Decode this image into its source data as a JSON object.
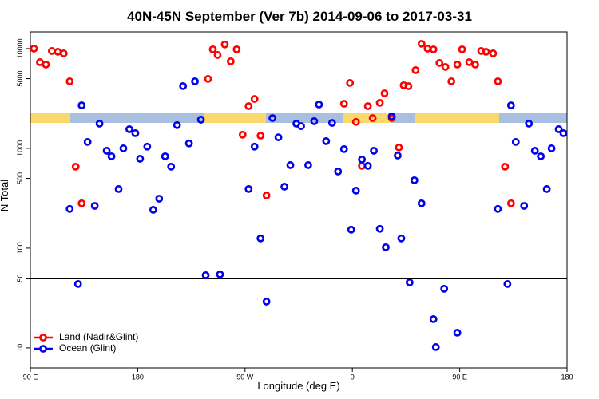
{
  "chart_data": {
    "type": "scatter",
    "title": "40N-45N September (Ver 7b)   2014-09-06 to 2017-03-31",
    "x_label": "Longitude (deg E)",
    "y_label": "N Total",
    "xlim": [
      90,
      540
    ],
    "ylim": [
      6.3,
      14700
    ],
    "log_y": true,
    "hline": 50,
    "xticks": [
      {
        "value": 90,
        "label": "90 E"
      },
      180,
      {
        "value": 270,
        "label": "90 W"
      },
      {
        "value": 360,
        "label": "0"
      },
      {
        "value": 450,
        "label": "90 E"
      },
      {
        "value": 540,
        "label": "180"
      }
    ],
    "yticks": [
      10,
      50,
      100,
      500,
      1000,
      5000,
      10000
    ],
    "legend_position": "bottom-left",
    "series": [
      {
        "name": "Land (Nadir&Glint)",
        "color": "#ff0000",
        "x": [
          93,
          98,
          103,
          108,
          113,
          118,
          123,
          128,
          133,
          239,
          243,
          247,
          253,
          258,
          263,
          268,
          273,
          278,
          283,
          288,
          353,
          358,
          363,
          368,
          373,
          377,
          383,
          387,
          393,
          399,
          403,
          407,
          413,
          418,
          423,
          428,
          433,
          438,
          443,
          448,
          452,
          458,
          463,
          468,
          472,
          478,
          482,
          488,
          493
        ],
        "values": [
          10000,
          7310,
          6920,
          9460,
          9290,
          8950,
          4700,
          655,
          281,
          4970,
          9820,
          8630,
          11000,
          7450,
          9820,
          1370,
          2650,
          3130,
          1340,
          337,
          2800,
          4530,
          1840,
          667,
          2650,
          2010,
          2860,
          3560,
          2010,
          1020,
          4290,
          4200,
          6080,
          11170,
          10000,
          9820,
          7180,
          6550,
          4700,
          6920,
          9820,
          7310,
          6920,
          9460,
          9290,
          8950,
          4700,
          655,
          281
        ]
      },
      {
        "name": "Ocean (Glint)",
        "color": "#0000ee",
        "x": [
          123,
          130,
          133,
          138,
          144,
          148,
          154,
          158,
          164,
          168,
          173,
          178,
          182,
          188,
          193,
          198,
          203,
          208,
          213,
          218,
          223,
          228,
          233,
          237,
          249,
          273,
          278,
          283,
          288,
          293,
          298,
          303,
          308,
          313,
          317,
          323,
          328,
          332,
          338,
          343,
          348,
          353,
          359,
          363,
          368,
          373,
          378,
          383,
          388,
          393,
          398,
          401,
          408,
          412,
          418,
          428,
          430,
          437,
          448,
          482,
          490,
          493,
          497,
          504,
          508,
          513,
          518,
          523,
          527,
          533,
          537
        ],
        "values": [
          247,
          43.7,
          2700,
          1160,
          265,
          1770,
          946,
          832,
          391,
          1000,
          1556,
          1420,
          787,
          1040,
          242,
          313,
          832,
          655,
          1710,
          4210,
          1120,
          4700,
          1940,
          53.5,
          54.5,
          391,
          1040,
          125,
          29.1,
          2010,
          1290,
          413,
          679,
          1770,
          1670,
          679,
          1870,
          2750,
          1180,
          1800,
          586,
          982,
          153,
          377,
          773,
          667,
          946,
          156,
          102,
          2090,
          847,
          125,
          45.3,
          479,
          281,
          19.4,
          10.2,
          39.1,
          14.2,
          247,
          43.7,
          2700,
          1160,
          265,
          1770,
          946,
          832,
          391,
          1000,
          1556,
          1420
        ]
      }
    ]
  }
}
